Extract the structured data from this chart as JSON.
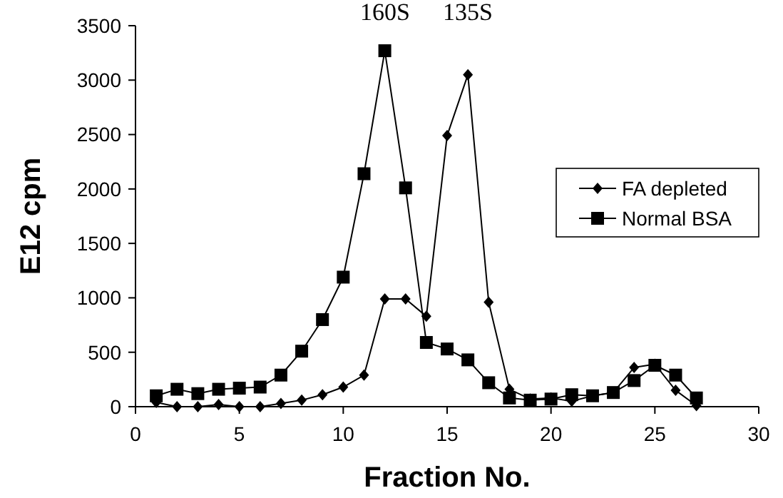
{
  "chart_data": {
    "type": "line",
    "xlabel": "Fraction No.",
    "ylabel": "E12 cpm",
    "x": [
      1,
      2,
      3,
      4,
      5,
      6,
      7,
      8,
      9,
      10,
      11,
      12,
      13,
      14,
      15,
      16,
      17,
      18,
      19,
      20,
      21,
      22,
      23,
      24,
      25,
      26,
      27
    ],
    "series": [
      {
        "name": "FA depleted",
        "color": "#000000",
        "marker": "diamond",
        "values": [
          40,
          0,
          0,
          20,
          0,
          0,
          30,
          60,
          110,
          180,
          290,
          990,
          990,
          830,
          2490,
          3050,
          960,
          160,
          70,
          80,
          50,
          100,
          130,
          360,
          390,
          150,
          10
        ]
      },
      {
        "name": "Normal BSA",
        "color": "#000000",
        "marker": "square",
        "values": [
          100,
          160,
          120,
          160,
          170,
          180,
          290,
          510,
          800,
          1190,
          2140,
          3270,
          2010,
          590,
          530,
          430,
          220,
          80,
          60,
          70,
          110,
          100,
          130,
          240,
          380,
          290,
          80
        ]
      }
    ],
    "xlim": [
      0,
      30
    ],
    "xticks": [
      0,
      5,
      10,
      15,
      20,
      25,
      30
    ],
    "ylim": [
      0,
      3500
    ],
    "yticks": [
      0,
      500,
      1000,
      1500,
      2000,
      2500,
      3000,
      3500
    ],
    "annotations": [
      "160S",
      "135S"
    ],
    "legend": "right",
    "grid": false,
    "line_style": "solid"
  }
}
